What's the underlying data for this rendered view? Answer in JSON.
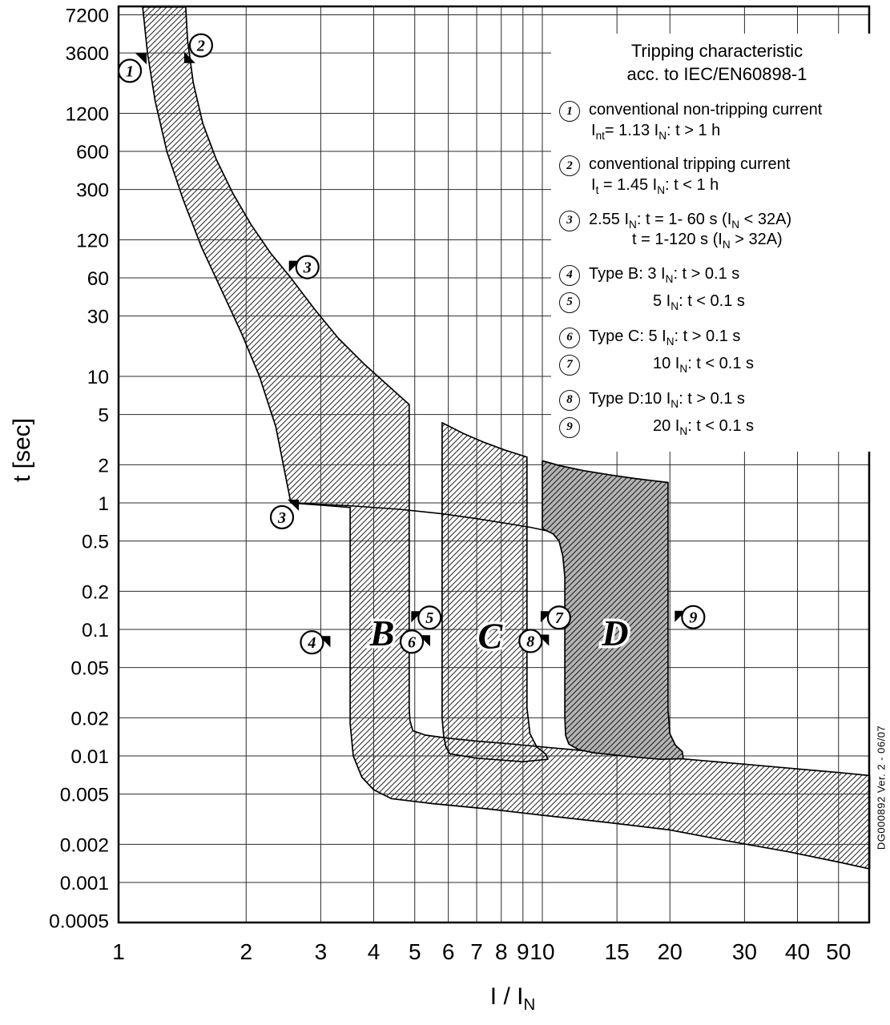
{
  "meta": {
    "doc_number": "DG000892 Ver. 2 - 06/07"
  },
  "axes": {
    "y_label": "t [sec]",
    "x_label_rich": "I / I_N_"
  },
  "legend": {
    "title_line1": "Tripping characteristic",
    "title_line2": "acc. to IEC/EN60898-1",
    "items": [
      {
        "num": "1",
        "gap": false,
        "indent": false,
        "lines": [
          "conventional non-tripping current",
          "I_nt_= 1.13 I_N_: t > 1 h"
        ]
      },
      {
        "num": "2",
        "gap": true,
        "indent": false,
        "lines": [
          "conventional tripping current",
          "I_t_ = 1.45 I_N_: t < 1 h"
        ]
      },
      {
        "num": "3",
        "gap": true,
        "indent": false,
        "lines": [
          "2.55 I_N_: t = 1- 60 s (I_N_ < 32A)",
          "t = 1-120 s (I_N_ > 32A)"
        ]
      },
      {
        "num": "4",
        "gap": true,
        "indent": false,
        "lines": [
          "Type B: 3 I_N_: t > 0.1 s"
        ]
      },
      {
        "num": "5",
        "gap": false,
        "indent": true,
        "lines": [
          "5 I_N_: t < 0.1 s"
        ]
      },
      {
        "num": "6",
        "gap": true,
        "indent": false,
        "lines": [
          "Type C: 5 I_N_: t > 0.1 s"
        ]
      },
      {
        "num": "7",
        "gap": false,
        "indent": true,
        "lines": [
          "10 I_N_: t < 0.1 s"
        ]
      },
      {
        "num": "8",
        "gap": true,
        "indent": false,
        "lines": [
          "Type D:10 I_N_: t > 0.1 s"
        ]
      },
      {
        "num": "9",
        "gap": false,
        "indent": true,
        "lines": [
          "20 I_N_: t < 0.1 s"
        ]
      }
    ]
  },
  "chart_data": {
    "type": "area",
    "title": "Tripping characteristic acc. to IEC/EN60898-1",
    "xlabel": "I / IN",
    "ylabel": "t [sec]",
    "x_log": true,
    "y_log": true,
    "xlim": [
      1,
      59.2
    ],
    "ylim": [
      0.0005,
      8300
    ],
    "grid": true,
    "x_ticks": {
      "values": [
        1,
        2,
        3,
        4,
        5,
        6,
        7,
        8,
        9,
        10,
        15,
        20,
        30,
        40,
        50
      ],
      "labels": [
        "1",
        "2",
        "3",
        "4",
        "5",
        "6",
        "7",
        "8",
        "9",
        "10",
        "15",
        "20",
        "30",
        "40",
        "50"
      ]
    },
    "y_ticks": {
      "values": [
        7200,
        3600,
        1200,
        600,
        300,
        120,
        60,
        30,
        10,
        5,
        2,
        1,
        0.5,
        0.2,
        0.1,
        0.05,
        0.02,
        0.01,
        0.005,
        0.002,
        0.001,
        0.0005
      ],
      "labels": [
        "7200",
        "3600",
        "1200",
        "600",
        "300",
        "120",
        "60",
        "30",
        "10",
        "5",
        "2",
        "1",
        "0.5",
        "0.2",
        "0.1",
        "0.05",
        "0.02",
        "0.01",
        "0.005",
        "0.002",
        "0.001",
        "0.0005"
      ]
    },
    "bands": [
      {
        "name": "thermal-band-with-type-B-magnetic-and-bottom-band",
        "style": "hatch",
        "points": [
          [
            1.14,
            8300
          ],
          [
            1.17,
            3600
          ],
          [
            1.22,
            1500
          ],
          [
            1.3,
            600
          ],
          [
            1.42,
            250
          ],
          [
            1.57,
            105
          ],
          [
            1.75,
            48
          ],
          [
            1.95,
            22
          ],
          [
            2.15,
            10
          ],
          [
            2.35,
            4
          ],
          [
            2.55,
            1.0
          ],
          [
            3.0,
            0.96
          ],
          [
            3.52,
            0.92
          ],
          [
            3.52,
            0.018
          ],
          [
            3.58,
            0.01
          ],
          [
            3.75,
            0.0068
          ],
          [
            4.0,
            0.0054
          ],
          [
            4.4,
            0.0046
          ],
          [
            5.5,
            0.0042
          ],
          [
            7.5,
            0.0038
          ],
          [
            10,
            0.0034
          ],
          [
            14,
            0.003
          ],
          [
            20,
            0.0026
          ],
          [
            28,
            0.0021
          ],
          [
            38,
            0.00175
          ],
          [
            50,
            0.00145
          ],
          [
            59.2,
            0.00128
          ],
          [
            59.2,
            0.007
          ],
          [
            50,
            0.0074
          ],
          [
            40,
            0.0079
          ],
          [
            30,
            0.0086
          ],
          [
            22,
            0.0094
          ],
          [
            17,
            0.0101
          ],
          [
            13,
            0.0109
          ],
          [
            10.5,
            0.0116
          ],
          [
            8.5,
            0.0124
          ],
          [
            7,
            0.0131
          ],
          [
            6,
            0.0138
          ],
          [
            5.3,
            0.0146
          ],
          [
            4.95,
            0.0158
          ],
          [
            4.87,
            0.019
          ],
          [
            4.85,
            0.024
          ],
          [
            4.85,
            6.0
          ],
          [
            4.3,
            8.6
          ],
          [
            3.8,
            12.5
          ],
          [
            3.3,
            20
          ],
          [
            2.9,
            34
          ],
          [
            2.55,
            60
          ],
          [
            2.28,
            95
          ],
          [
            2.05,
            160
          ],
          [
            1.86,
            280
          ],
          [
            1.7,
            520
          ],
          [
            1.58,
            1000
          ],
          [
            1.5,
            2100
          ],
          [
            1.455,
            4500
          ],
          [
            1.44,
            8300
          ]
        ]
      },
      {
        "name": "type-C-magnetic-band",
        "style": "hatch",
        "points": [
          [
            5.8,
            4.3
          ],
          [
            6.5,
            3.55
          ],
          [
            7.3,
            3.0
          ],
          [
            8.2,
            2.6
          ],
          [
            9.2,
            2.3
          ],
          [
            9.2,
            0.024
          ],
          [
            9.35,
            0.015
          ],
          [
            9.7,
            0.0118
          ],
          [
            10.2,
            0.0103
          ],
          [
            10.3,
            0.0094
          ],
          [
            9.0,
            0.009
          ],
          [
            7.0,
            0.0096
          ],
          [
            6.05,
            0.0104
          ],
          [
            5.92,
            0.0118
          ],
          [
            5.85,
            0.0145
          ],
          [
            5.8,
            0.02
          ]
        ]
      },
      {
        "name": "type-D-magnetic-band",
        "style": "gray-hatch",
        "points": [
          [
            10,
            2.15
          ],
          [
            11,
            1.97
          ],
          [
            12.5,
            1.8
          ],
          [
            14.5,
            1.66
          ],
          [
            16.5,
            1.56
          ],
          [
            18.2,
            1.5
          ],
          [
            19.8,
            1.45
          ],
          [
            19.8,
            0.023
          ],
          [
            20.0,
            0.015
          ],
          [
            20.6,
            0.0122
          ],
          [
            21.4,
            0.0108
          ],
          [
            21.5,
            0.0095
          ],
          [
            19,
            0.0094
          ],
          [
            16,
            0.0099
          ],
          [
            13.2,
            0.0106
          ],
          [
            12.2,
            0.0112
          ],
          [
            11.55,
            0.0124
          ],
          [
            11.35,
            0.0145
          ],
          [
            11.3,
            0.02
          ],
          [
            11.3,
            0.26
          ],
          [
            11.18,
            0.38
          ],
          [
            10.95,
            0.5
          ],
          [
            10.6,
            0.57
          ],
          [
            10.15,
            0.61
          ],
          [
            10,
            0.63
          ]
        ]
      }
    ],
    "inner_curve": {
      "name": "lower-thermal-continuation",
      "points": [
        [
          2.55,
          1.0
        ],
        [
          3.5,
          0.95
        ],
        [
          4.6,
          0.89
        ],
        [
          5.8,
          0.82
        ],
        [
          7.0,
          0.75
        ],
        [
          8.2,
          0.69
        ],
        [
          9.4,
          0.64
        ],
        [
          10.3,
          0.6
        ]
      ]
    },
    "annotations": [
      {
        "n": "1",
        "I": 1.063,
        "t": 2600,
        "flag": "tr"
      },
      {
        "n": "2",
        "I": 1.565,
        "t": 4130,
        "flag": "bl"
      },
      {
        "n": "3",
        "I": 2.79,
        "t": 73,
        "flag": "l"
      },
      {
        "n": "3",
        "I": 2.43,
        "t": 0.77,
        "flag": "tr"
      },
      {
        "n": "4",
        "I": 2.86,
        "t": 0.079,
        "flag": "r"
      },
      {
        "n": "5",
        "I": 5.42,
        "t": 0.124,
        "flag": "l"
      },
      {
        "n": "6",
        "I": 4.92,
        "t": 0.08,
        "flag": "r"
      },
      {
        "n": "7",
        "I": 10.95,
        "t": 0.124,
        "flag": "l"
      },
      {
        "n": "8",
        "I": 9.38,
        "t": 0.081,
        "flag": "r"
      },
      {
        "n": "9",
        "I": 22.7,
        "t": 0.125,
        "flag": "l"
      }
    ],
    "region_labels": [
      {
        "text": "B",
        "I": 4.19,
        "t": 0.0747
      },
      {
        "text": "C",
        "I": 7.53,
        "t": 0.071
      },
      {
        "text": "D",
        "I": 14.86,
        "t": 0.0747
      }
    ]
  }
}
